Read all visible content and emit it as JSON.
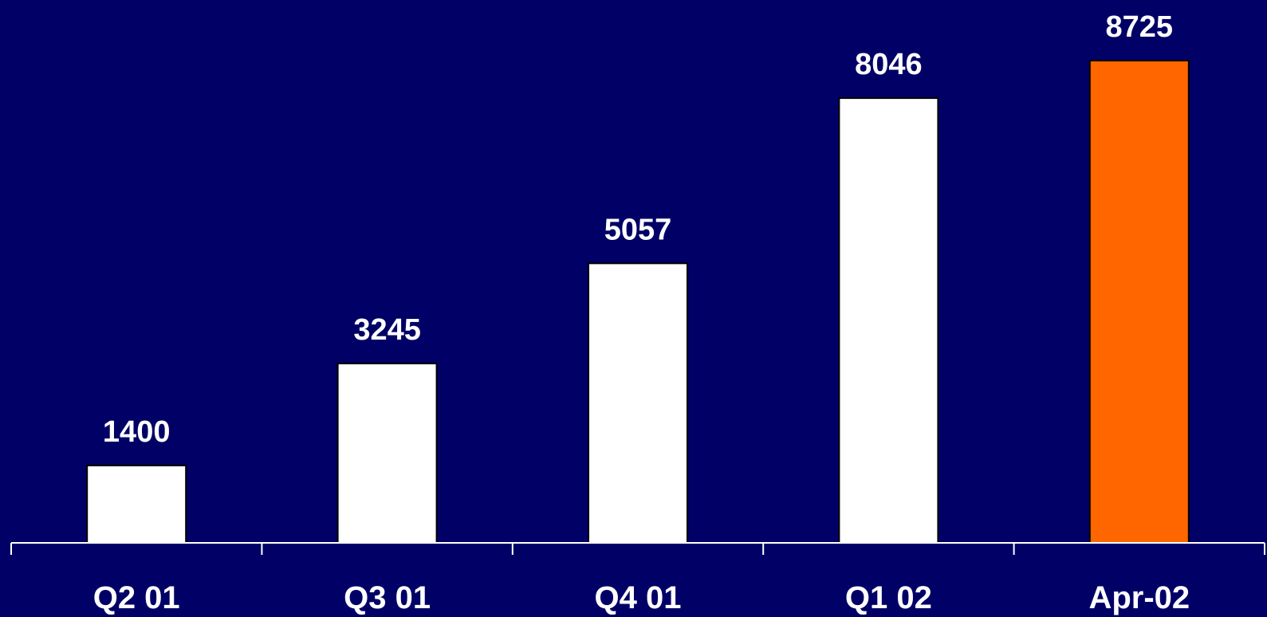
{
  "chart_data": {
    "type": "bar",
    "categories": [
      "Q2 01",
      "Q3 01",
      "Q4 01",
      "Q1 02",
      "Apr-02"
    ],
    "values": [
      1400,
      3245,
      5057,
      8046,
      8725
    ],
    "data_labels": [
      "1400",
      "3245",
      "5057",
      "8046",
      "8725"
    ],
    "title": "",
    "xlabel": "",
    "ylabel": "",
    "ylim": [
      0,
      8725
    ],
    "grid": false,
    "legend": "none",
    "colors": {
      "background": "#000066",
      "bar_default": "#ffffff",
      "bar_highlight": "#ff6600",
      "text": "#ffffff",
      "axis": "#ffffff"
    },
    "highlighted_category": "Apr-02"
  }
}
